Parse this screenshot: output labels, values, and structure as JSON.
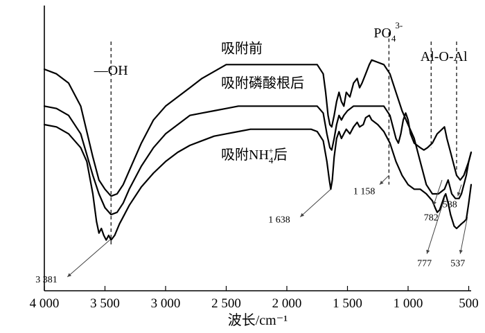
{
  "chart_data": {
    "type": "line",
    "title": "",
    "xlabel": "波长/cm⁻¹",
    "ylabel": "",
    "xlim": [
      4000,
      480
    ],
    "x_reversed": true,
    "grid": false,
    "ticks": [
      {
        "value": 4000,
        "label": "4 000"
      },
      {
        "value": 3500,
        "label": "3 500"
      },
      {
        "value": 3000,
        "label": "3 000"
      },
      {
        "value": 2500,
        "label": "2 500"
      },
      {
        "value": 2000,
        "label": "2 000"
      },
      {
        "value": 1500,
        "label": "1 500"
      },
      {
        "value": 1000,
        "label": "1 000"
      },
      {
        "value": 500,
        "label": "500"
      }
    ],
    "series": [
      {
        "name": "吸附前",
        "points": [
          [
            4000,
            36
          ],
          [
            3900,
            35
          ],
          [
            3800,
            33
          ],
          [
            3700,
            28
          ],
          [
            3600,
            17
          ],
          [
            3550,
            12
          ],
          [
            3500,
            10
          ],
          [
            3450,
            8.5
          ],
          [
            3400,
            9
          ],
          [
            3350,
            11
          ],
          [
            3300,
            14
          ],
          [
            3200,
            20
          ],
          [
            3100,
            25
          ],
          [
            3000,
            28
          ],
          [
            2900,
            30
          ],
          [
            2800,
            32
          ],
          [
            2700,
            34
          ],
          [
            2600,
            35.5
          ],
          [
            2500,
            37
          ],
          [
            2400,
            37
          ],
          [
            2300,
            37
          ],
          [
            2200,
            37
          ],
          [
            2100,
            37
          ],
          [
            2000,
            37
          ],
          [
            1900,
            37
          ],
          [
            1800,
            37
          ],
          [
            1750,
            37
          ],
          [
            1700,
            35
          ],
          [
            1680,
            31
          ],
          [
            1660,
            26
          ],
          [
            1645,
            24
          ],
          [
            1630,
            23.5
          ],
          [
            1610,
            26
          ],
          [
            1590,
            29
          ],
          [
            1570,
            31
          ],
          [
            1550,
            29
          ],
          [
            1530,
            28
          ],
          [
            1510,
            31
          ],
          [
            1480,
            30
          ],
          [
            1450,
            33
          ],
          [
            1420,
            34
          ],
          [
            1400,
            32
          ],
          [
            1380,
            33
          ],
          [
            1350,
            35
          ],
          [
            1320,
            37
          ],
          [
            1300,
            38
          ],
          [
            1250,
            37.5
          ],
          [
            1200,
            37
          ],
          [
            1150,
            35
          ],
          [
            1100,
            31
          ],
          [
            1050,
            27
          ],
          [
            1000,
            24
          ],
          [
            950,
            21
          ],
          [
            900,
            16
          ],
          [
            850,
            11
          ],
          [
            800,
            9
          ],
          [
            750,
            9
          ],
          [
            700,
            10
          ],
          [
            670,
            12
          ],
          [
            640,
            9
          ],
          [
            610,
            8
          ],
          [
            580,
            8
          ],
          [
            560,
            9
          ],
          [
            540,
            11
          ],
          [
            520,
            13
          ],
          [
            500,
            16
          ],
          [
            480,
            18
          ]
        ],
        "label_at": [
          2000,
          39.5
        ]
      },
      {
        "name": "吸附磷酸根后",
        "points": [
          [
            4000,
            28
          ],
          [
            3900,
            27.5
          ],
          [
            3800,
            26
          ],
          [
            3700,
            22
          ],
          [
            3600,
            13
          ],
          [
            3550,
            9
          ],
          [
            3500,
            6
          ],
          [
            3450,
            4.5
          ],
          [
            3400,
            5
          ],
          [
            3350,
            7
          ],
          [
            3300,
            10
          ],
          [
            3200,
            15
          ],
          [
            3100,
            19
          ],
          [
            3000,
            22
          ],
          [
            2900,
            24
          ],
          [
            2800,
            26
          ],
          [
            2700,
            26.5
          ],
          [
            2600,
            27
          ],
          [
            2500,
            27.5
          ],
          [
            2400,
            28
          ],
          [
            2300,
            28
          ],
          [
            2200,
            28
          ],
          [
            2100,
            28
          ],
          [
            2000,
            28
          ],
          [
            1900,
            28
          ],
          [
            1800,
            28
          ],
          [
            1750,
            28
          ],
          [
            1700,
            26.5
          ],
          [
            1670,
            22
          ],
          [
            1645,
            19
          ],
          [
            1630,
            18.5
          ],
          [
            1610,
            21
          ],
          [
            1590,
            24
          ],
          [
            1570,
            26
          ],
          [
            1550,
            25
          ],
          [
            1530,
            26
          ],
          [
            1500,
            27
          ],
          [
            1450,
            28
          ],
          [
            1400,
            28
          ],
          [
            1350,
            28
          ],
          [
            1300,
            28
          ],
          [
            1250,
            28
          ],
          [
            1200,
            28
          ],
          [
            1150,
            26
          ],
          [
            1100,
            21
          ],
          [
            1080,
            20
          ],
          [
            1060,
            22
          ],
          [
            1040,
            25
          ],
          [
            1020,
            26.5
          ],
          [
            1000,
            25
          ],
          [
            980,
            22
          ],
          [
            950,
            20
          ],
          [
            900,
            19
          ],
          [
            870,
            18.5
          ],
          [
            840,
            19
          ],
          [
            800,
            20
          ],
          [
            760,
            22
          ],
          [
            720,
            23
          ],
          [
            700,
            23.5
          ],
          [
            680,
            21
          ],
          [
            650,
            18
          ],
          [
            620,
            15
          ],
          [
            600,
            13
          ],
          [
            570,
            12
          ],
          [
            540,
            13
          ],
          [
            500,
            16
          ],
          [
            480,
            18
          ]
        ],
        "label_at": [
          2000,
          32
        ]
      },
      {
        "name": "吸附NH4+后",
        "points": [
          [
            4000,
            24
          ],
          [
            3900,
            23.5
          ],
          [
            3800,
            22
          ],
          [
            3700,
            19
          ],
          [
            3650,
            16
          ],
          [
            3600,
            9
          ],
          [
            3570,
            3
          ],
          [
            3550,
            0.5
          ],
          [
            3530,
            1.5
          ],
          [
            3510,
            0
          ],
          [
            3490,
            -1
          ],
          [
            3470,
            0
          ],
          [
            3450,
            -1
          ],
          [
            3420,
            0
          ],
          [
            3380,
            2.5
          ],
          [
            3350,
            4
          ],
          [
            3300,
            6.5
          ],
          [
            3200,
            10.5
          ],
          [
            3100,
            13.5
          ],
          [
            3000,
            16
          ],
          [
            2900,
            18
          ],
          [
            2800,
            19.5
          ],
          [
            2700,
            20.5
          ],
          [
            2600,
            21.5
          ],
          [
            2500,
            22
          ],
          [
            2400,
            22.5
          ],
          [
            2300,
            23
          ],
          [
            2200,
            23
          ],
          [
            2100,
            23
          ],
          [
            2000,
            23
          ],
          [
            1900,
            23
          ],
          [
            1800,
            23
          ],
          [
            1750,
            22.5
          ],
          [
            1700,
            20.5
          ],
          [
            1670,
            16
          ],
          [
            1650,
            12
          ],
          [
            1638,
            10
          ],
          [
            1625,
            12
          ],
          [
            1610,
            17
          ],
          [
            1590,
            21
          ],
          [
            1570,
            22.5
          ],
          [
            1550,
            21
          ],
          [
            1530,
            22
          ],
          [
            1510,
            23
          ],
          [
            1480,
            22
          ],
          [
            1450,
            23.5
          ],
          [
            1420,
            24.5
          ],
          [
            1400,
            23.5
          ],
          [
            1370,
            24
          ],
          [
            1350,
            25.5
          ],
          [
            1320,
            26
          ],
          [
            1300,
            25
          ],
          [
            1250,
            24
          ],
          [
            1200,
            22.5
          ],
          [
            1150,
            20
          ],
          [
            1100,
            16
          ],
          [
            1050,
            13
          ],
          [
            1000,
            11
          ],
          [
            950,
            10
          ],
          [
            900,
            10
          ],
          [
            850,
            9
          ],
          [
            800,
            7.5
          ],
          [
            777,
            6
          ],
          [
            760,
            5
          ],
          [
            740,
            5.5
          ],
          [
            720,
            7
          ],
          [
            700,
            8.5
          ],
          [
            690,
            9
          ],
          [
            670,
            7
          ],
          [
            650,
            4.5
          ],
          [
            620,
            2
          ],
          [
            600,
            1.5
          ],
          [
            580,
            2
          ],
          [
            560,
            2.5
          ],
          [
            537,
            3
          ],
          [
            520,
            3.5
          ],
          [
            500,
            7
          ],
          [
            480,
            11
          ]
        ],
        "label_at": [
          2000,
          16.5
        ]
      }
    ],
    "series_labels": [
      "吸附前",
      "吸附磷酸根后",
      "吸附NH",
      "4",
      "+",
      "后"
    ],
    "bands": [
      {
        "x": 3450,
        "label": "—OH",
        "y_top": 42,
        "y_bottom": -2,
        "label_y": 44
      },
      {
        "x": 1158,
        "label": "PO",
        "sub": "4",
        "sup": "3-",
        "y_top": 44,
        "y_bottom": 11,
        "label_y": 46
      },
      {
        "x": 810,
        "label": "",
        "y_top": 42,
        "y_bottom": 19,
        "label_y": 0
      },
      {
        "x": 600,
        "label": "",
        "y_top": 42,
        "y_bottom": 14,
        "label_y": 0
      }
    ],
    "band_label_alo": "Al-O-Al",
    "pointers": [
      {
        "label": "3 381",
        "from": [
          3810,
          -9
        ],
        "to": [
          3460,
          -1
        ]
      },
      {
        "label": "1 638",
        "from": [
          1890,
          4
        ],
        "to": [
          1638,
          10
        ]
      },
      {
        "label": "1 158",
        "from": [
          1235,
          11
        ],
        "to": [
          1158,
          13
        ]
      },
      {
        "label": "782",
        "from": [
          790,
          6.5
        ],
        "to": [
          720,
          12
        ]
      },
      {
        "label": "588",
        "from": [
          590,
          8.5
        ],
        "to": [
          560,
          11
        ]
      },
      {
        "label": "777",
        "from": [
          845,
          -4
        ],
        "to": [
          700,
          8
        ]
      },
      {
        "label": "537",
        "from": [
          570,
          -4
        ],
        "to": [
          510,
          4
        ]
      }
    ]
  }
}
